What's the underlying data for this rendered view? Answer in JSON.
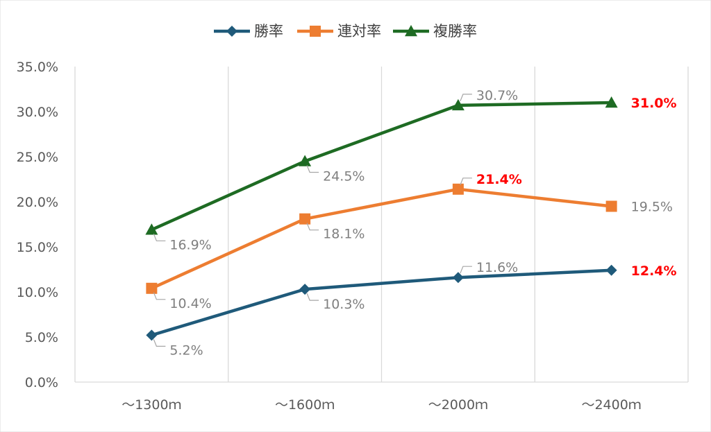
{
  "chart_data": {
    "type": "line",
    "categories": [
      "～1300ｍ",
      "～1600ｍ",
      "～2000ｍ",
      "～2400ｍ"
    ],
    "ylim": [
      0,
      35
    ],
    "ytick_step": 5,
    "ytick_format": "percent_1dp",
    "grid": "vertical",
    "legend_position": "top",
    "series": [
      {
        "name": "勝率",
        "color": "#1f5a7a",
        "marker": "diamond",
        "values": [
          5.2,
          10.3,
          11.6,
          12.4
        ],
        "labels": [
          "5.2%",
          "10.3%",
          "11.6%",
          "12.4%"
        ],
        "highlight": [
          false,
          false,
          false,
          true
        ]
      },
      {
        "name": "連対率",
        "color": "#ed7d31",
        "marker": "square",
        "values": [
          10.4,
          18.1,
          21.4,
          19.5
        ],
        "labels": [
          "10.4%",
          "18.1%",
          "21.4%",
          "19.5%"
        ],
        "highlight": [
          false,
          false,
          true,
          false
        ]
      },
      {
        "name": "複勝率",
        "color": "#1e6b23",
        "marker": "triangle",
        "values": [
          16.9,
          24.5,
          30.7,
          31.0
        ],
        "labels": [
          "16.9%",
          "24.5%",
          "30.7%",
          "31.0%"
        ],
        "highlight": [
          false,
          false,
          false,
          true
        ]
      }
    ],
    "highlight_color": "#ff0000"
  }
}
